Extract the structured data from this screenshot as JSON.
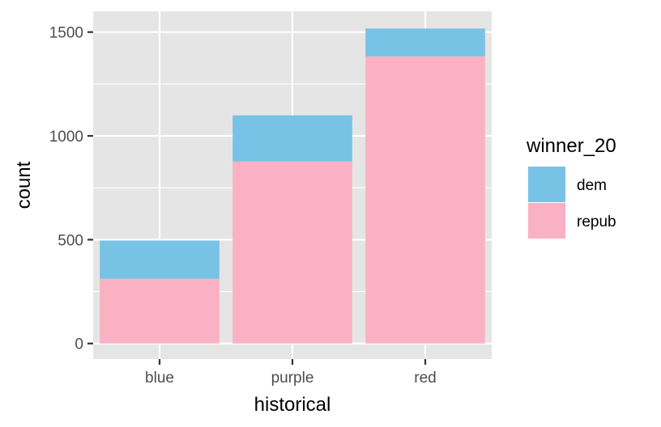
{
  "chart_data": {
    "type": "bar",
    "stacked": true,
    "categories": [
      "blue",
      "purple",
      "red"
    ],
    "series": [
      {
        "name": "repub",
        "values": [
          312,
          877,
          1383
        ],
        "color": "#FBB1C4"
      },
      {
        "name": "dem",
        "values": [
          184,
          222,
          134
        ],
        "color": "#78C2E5"
      }
    ],
    "xlabel": "historical",
    "ylabel": "count",
    "ylim": [
      -75,
      1600
    ],
    "yticks": [
      0,
      500,
      1000,
      1500
    ],
    "ytick_labels": [
      "0",
      "500",
      "1000",
      "1500"
    ],
    "grid": true,
    "panel_background": "#E5E5E5",
    "legend": {
      "title": "winner_20",
      "position": "right",
      "entries": [
        {
          "label": "dem",
          "color": "#78C2E5"
        },
        {
          "label": "repub",
          "color": "#FBB1C4"
        }
      ]
    }
  }
}
